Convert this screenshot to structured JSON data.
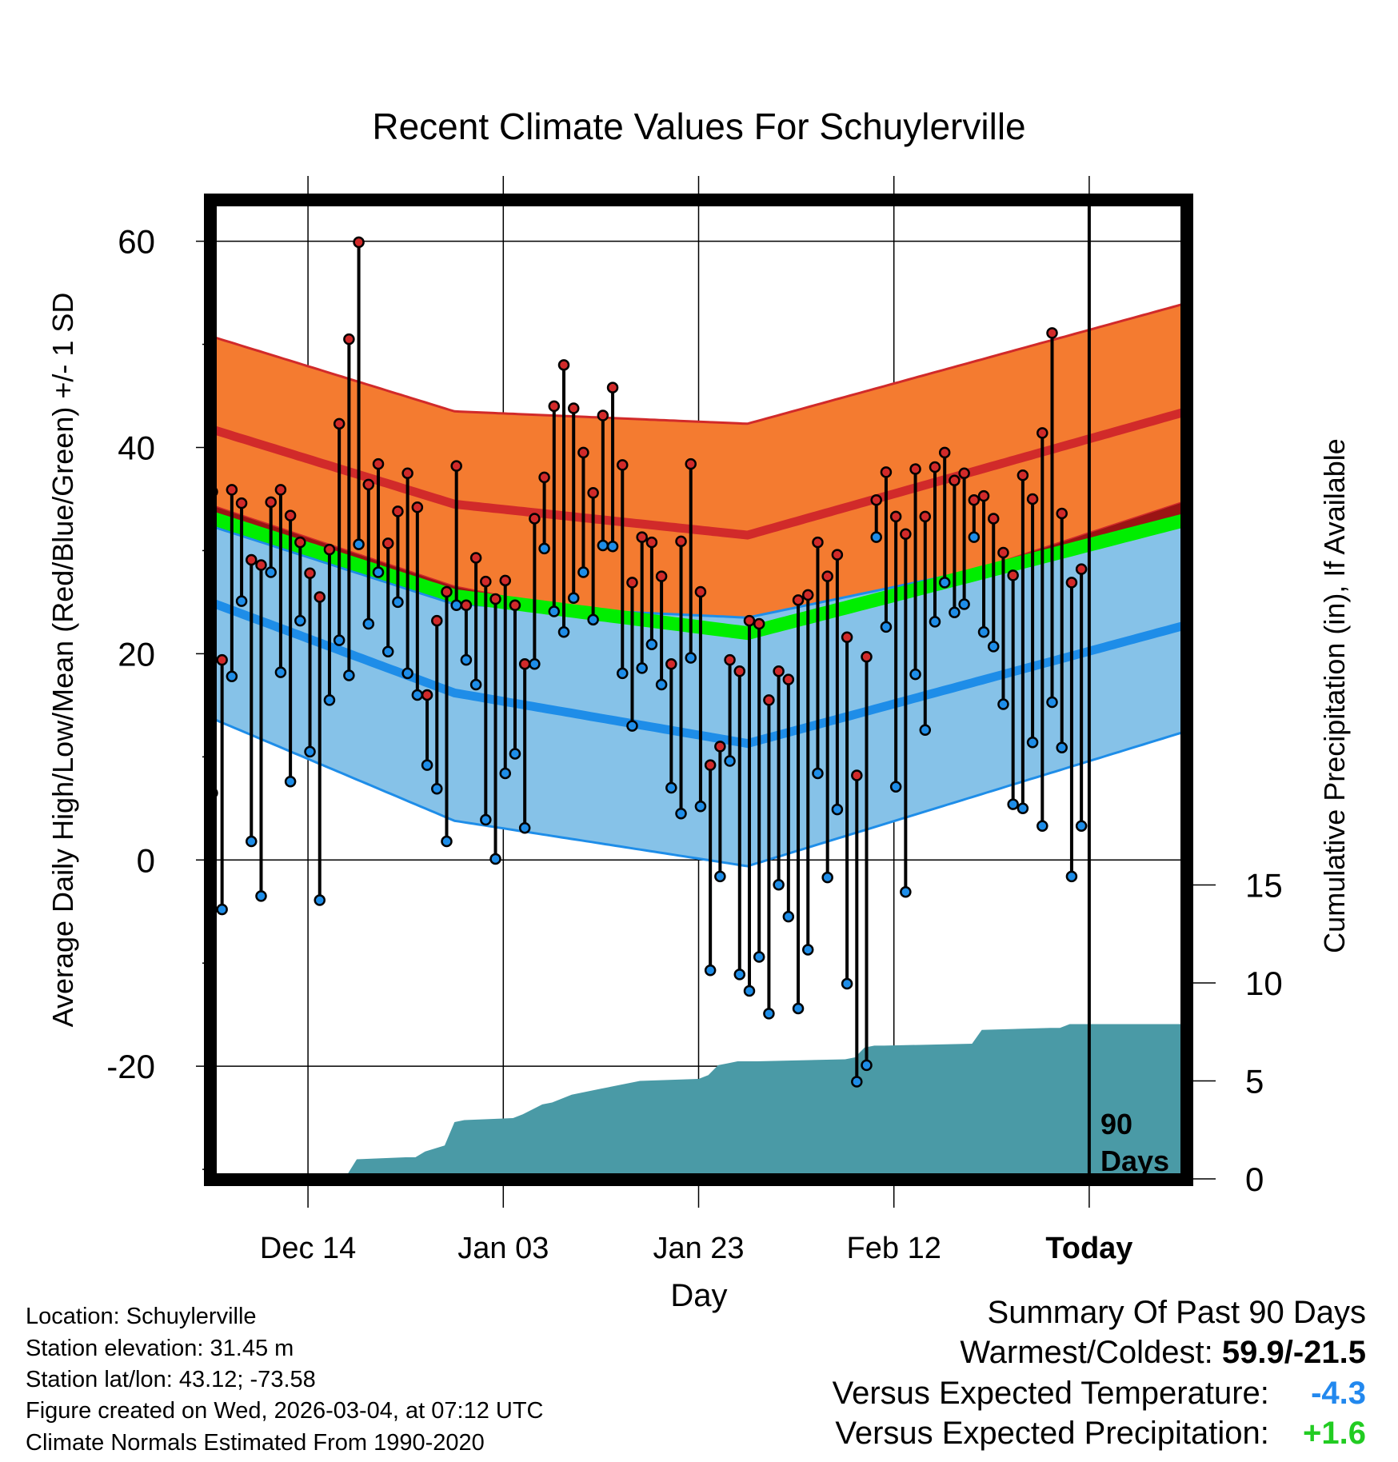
{
  "chart_data": {
    "type": "line",
    "title": "Recent Climate Values For Schuylerville",
    "xlabel": "Day",
    "ylabel": "Average Daily High/Low/Mean (Red/Blue/Green) +/- 1 SD",
    "ylabel_right": "Cumulative Precipitation (in), If Available",
    "x_tick_labels": [
      "Dec 14",
      "Jan 03",
      "Jan 23",
      "Feb 12",
      "Today"
    ],
    "x_tick_days": [
      10,
      30,
      50,
      70,
      90
    ],
    "xlim": [
      0,
      100
    ],
    "ylim": [
      -31,
      64
    ],
    "y_ticks": [
      -20,
      0,
      20,
      40,
      60
    ],
    "y_ticks_right": [
      0,
      5,
      10,
      15
    ],
    "marker_label": "90 Days",
    "normal_high": {
      "x": [
        0,
        25,
        55,
        100
      ],
      "mean": [
        41.8,
        34.5,
        31.5,
        43.5
      ],
      "upper": [
        50.8,
        43.5,
        42.3,
        54.0
      ],
      "lower": [
        34.4,
        26.5,
        20.8,
        34.8
      ]
    },
    "normal_low": {
      "x": [
        0,
        25,
        55,
        100
      ],
      "mean": [
        25.0,
        16.2,
        11.3,
        22.8
      ],
      "upper": [
        32.4,
        24.8,
        23.5,
        32.4
      ],
      "lower": [
        13.8,
        3.8,
        -0.6,
        12.5
      ]
    },
    "normal_mean": {
      "x": [
        0,
        25,
        55,
        100
      ],
      "mean": [
        33.2,
        25.6,
        22.0,
        33.0
      ]
    },
    "daily_high": [
      35.7,
      19.4,
      35.9,
      34.6,
      29.1,
      28.6,
      34.7,
      35.9,
      33.4,
      30.8,
      27.8,
      25.5,
      30.1,
      42.3,
      50.5,
      59.9,
      36.4,
      38.4,
      30.7,
      33.8,
      37.5,
      34.2,
      16.0,
      23.2,
      26.0,
      38.2,
      24.7,
      29.3,
      27.0,
      25.3,
      27.1,
      24.7,
      19.0,
      33.1,
      37.1,
      44.0,
      48.0,
      43.8,
      39.5,
      35.6,
      43.1,
      45.8,
      38.3,
      26.9,
      31.3,
      30.8,
      27.5,
      19.0,
      30.9,
      38.4,
      26.0,
      9.2,
      11.0,
      19.4,
      18.3,
      23.2,
      22.9,
      15.5,
      18.3,
      17.5,
      25.2,
      25.7,
      30.8,
      27.5,
      29.6,
      21.6,
      8.2,
      19.7,
      34.9,
      37.6,
      33.3,
      31.6,
      37.9,
      33.3,
      38.1,
      39.5,
      36.8,
      37.5,
      34.9,
      35.3,
      33.1,
      29.8,
      27.6,
      37.3,
      35.0,
      41.4,
      51.1,
      33.6,
      26.9,
      28.2
    ],
    "daily_low": [
      6.5,
      -4.8,
      17.8,
      25.1,
      1.8,
      -3.5,
      27.9,
      18.2,
      7.6,
      23.2,
      10.5,
      -3.9,
      15.5,
      21.3,
      17.9,
      30.6,
      22.9,
      27.9,
      20.2,
      25.0,
      18.1,
      16.0,
      9.2,
      6.9,
      1.8,
      24.7,
      19.4,
      17.0,
      3.9,
      0.1,
      8.4,
      10.3,
      3.1,
      19.0,
      30.2,
      24.1,
      22.1,
      25.4,
      27.9,
      23.3,
      30.5,
      30.4,
      18.1,
      13.0,
      18.6,
      20.9,
      17.0,
      7.0,
      4.5,
      19.6,
      5.2,
      -10.7,
      -1.6,
      9.6,
      -11.1,
      -12.7,
      -9.4,
      -14.9,
      -2.4,
      -5.5,
      -14.4,
      -8.7,
      8.4,
      -1.7,
      4.9,
      -12.0,
      -21.5,
      -19.9,
      31.3,
      22.6,
      7.1,
      -3.1,
      18.0,
      12.6,
      23.1,
      26.9,
      24.0,
      24.8,
      31.3,
      22.1,
      20.7,
      15.1,
      5.4,
      5.0,
      11.4,
      3.3,
      15.3,
      10.9,
      -1.6,
      3.3
    ],
    "precip_cumulative": {
      "day": [
        0,
        5,
        6,
        7,
        14,
        15,
        20,
        21,
        22,
        24,
        25,
        26,
        31,
        32,
        34,
        35,
        37,
        38,
        39,
        40,
        42,
        44,
        50,
        51,
        52,
        53,
        54,
        56,
        65,
        66,
        67,
        68,
        69,
        78,
        79,
        86,
        87,
        88,
        100
      ],
      "value": [
        0,
        0,
        0.1,
        0.1,
        0.2,
        1.0,
        1.1,
        1.1,
        1.4,
        1.7,
        2.9,
        3.0,
        3.1,
        3.3,
        3.8,
        3.9,
        4.3,
        4.4,
        4.5,
        4.6,
        4.8,
        5.0,
        5.1,
        5.3,
        5.8,
        5.9,
        6.0,
        6.0,
        6.1,
        6.2,
        6.7,
        6.8,
        6.8,
        6.9,
        7.6,
        7.7,
        7.7,
        7.9,
        7.9
      ]
    }
  },
  "footer": {
    "location": "Location: Schuylerville",
    "elevation": "Station elevation: 31.45 m",
    "latlon": "Station lat/lon: 43.12; -73.58",
    "created": "Figure created on Wed, 2026-03-04, at 07:12 UTC",
    "normals": "Climate Normals Estimated From 1990-2020"
  },
  "summary": {
    "heading": "Summary Of Past 90 Days",
    "warmest_label": "Warmest/Coldest:",
    "warmest_value": "59.9/-21.5",
    "temp_label": "Versus Expected Temperature:",
    "temp_value": "-4.3",
    "precip_label": "Versus Expected Precipitation:",
    "precip_value": "+1.6"
  },
  "colors": {
    "high_band": "#f47b30",
    "high_line": "#d12a2a",
    "low_band": "#86c2e8",
    "low_line": "#1e8de8",
    "mean_line": "#00ee00",
    "overlap": "#9b1414",
    "precip": "#4a9aa6",
    "temp_value": "#2288ee",
    "precip_value": "#22cc22"
  }
}
